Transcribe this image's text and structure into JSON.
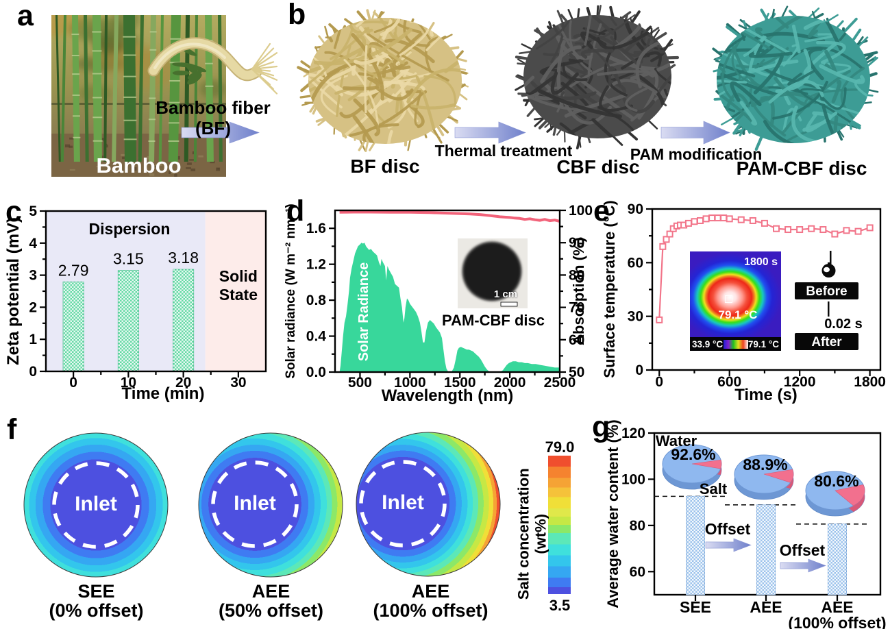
{
  "panels": {
    "a": {
      "label": "a",
      "photo_caption": "Bamboo",
      "fiber_label": "Bamboo fiber (BF)"
    },
    "b": {
      "label": "b",
      "arrow1": "Thermal treatment",
      "arrow2": "PAM modification",
      "discs": [
        {
          "name": "BF disc",
          "color": "#d6c184"
        },
        {
          "name": "CBF disc",
          "color": "#4b4b4b"
        },
        {
          "name": "PAM-CBF disc",
          "color": "#3d9c95"
        }
      ]
    },
    "c": {
      "label": "c",
      "chart_data": {
        "type": "bar",
        "xlabel": "Time (min)",
        "ylabel": "Zeta potential (mV)",
        "xlim": [
          -5,
          35
        ],
        "ylim": [
          0,
          5
        ],
        "yticks": [
          0,
          1,
          2,
          3,
          4,
          5
        ],
        "xticks": [
          0,
          10,
          20,
          30
        ],
        "categories": [
          0,
          10,
          20
        ],
        "values": [
          2.79,
          3.15,
          3.18
        ],
        "value_labels": [
          "2.79",
          "3.15",
          "3.18"
        ],
        "bar_color": "#66d9a6",
        "regions": [
          {
            "label": "Dispersion",
            "x_range": [
              -5,
              24
            ],
            "color": "#e9e9f7"
          },
          {
            "label_line1": "Solid",
            "label_line2": "State",
            "x_range": [
              24,
              35
            ],
            "color": "#fdecea"
          }
        ]
      }
    },
    "d": {
      "label": "d",
      "chart_data": {
        "type": "area+line",
        "xlabel": "Wavelength (nm)",
        "ylabel_left": "Solar radiance (W m⁻² nm⁻¹)",
        "ylabel_right": "Absorption (%)",
        "xlim": [
          250,
          2500
        ],
        "xticks": [
          500,
          1000,
          1500,
          2000,
          2500
        ],
        "ylim_left": [
          0,
          1.8
        ],
        "yticks_left": [
          "0.0",
          "0.4",
          "0.8",
          "1.2",
          "1.6"
        ],
        "ylim_right": [
          50,
          100
        ],
        "yticks_right": [
          50,
          60,
          70,
          80,
          90,
          100
        ],
        "area_series": "Solar Radiance",
        "area_color": "#38d79b",
        "line_color": "#f2637a",
        "solar": [
          [
            295,
            0
          ],
          [
            305,
            0.07
          ],
          [
            315,
            0.2
          ],
          [
            330,
            0.4
          ],
          [
            345,
            0.55
          ],
          [
            360,
            0.62
          ],
          [
            375,
            0.75
          ],
          [
            390,
            0.9
          ],
          [
            400,
            1.05
          ],
          [
            415,
            1.15
          ],
          [
            430,
            1.22
          ],
          [
            450,
            1.32
          ],
          [
            465,
            1.36
          ],
          [
            480,
            1.4
          ],
          [
            500,
            1.42
          ],
          [
            515,
            1.44
          ],
          [
            530,
            1.43
          ],
          [
            545,
            1.44
          ],
          [
            560,
            1.4
          ],
          [
            575,
            1.38
          ],
          [
            590,
            1.36
          ],
          [
            610,
            1.37
          ],
          [
            630,
            1.34
          ],
          [
            650,
            1.32
          ],
          [
            670,
            1.3
          ],
          [
            690,
            1.22
          ],
          [
            705,
            1.18
          ],
          [
            715,
            1.26
          ],
          [
            730,
            1.22
          ],
          [
            750,
            1.18
          ],
          [
            762,
            1.02
          ],
          [
            775,
            1.18
          ],
          [
            790,
            1.14
          ],
          [
            810,
            1.1
          ],
          [
            830,
            1.06
          ],
          [
            850,
            0.98
          ],
          [
            870,
            0.96
          ],
          [
            890,
            0.94
          ],
          [
            905,
            0.82
          ],
          [
            920,
            0.72
          ],
          [
            935,
            0.55
          ],
          [
            945,
            0.6
          ],
          [
            955,
            0.72
          ],
          [
            970,
            0.82
          ],
          [
            985,
            0.8
          ],
          [
            1000,
            0.76
          ],
          [
            1020,
            0.73
          ],
          [
            1040,
            0.7
          ],
          [
            1060,
            0.67
          ],
          [
            1080,
            0.62
          ],
          [
            1100,
            0.55
          ],
          [
            1115,
            0.45
          ],
          [
            1130,
            0.33
          ],
          [
            1145,
            0.33
          ],
          [
            1160,
            0.45
          ],
          [
            1180,
            0.55
          ],
          [
            1200,
            0.58
          ],
          [
            1220,
            0.56
          ],
          [
            1240,
            0.54
          ],
          [
            1260,
            0.5
          ],
          [
            1280,
            0.47
          ],
          [
            1300,
            0.44
          ],
          [
            1320,
            0.38
          ],
          [
            1335,
            0.25
          ],
          [
            1350,
            0.12
          ],
          [
            1365,
            0.04
          ],
          [
            1380,
            0.01
          ],
          [
            1400,
            0
          ],
          [
            1420,
            0.01
          ],
          [
            1440,
            0.05
          ],
          [
            1460,
            0.15
          ],
          [
            1475,
            0.24
          ],
          [
            1490,
            0.27
          ],
          [
            1510,
            0.28
          ],
          [
            1530,
            0.27
          ],
          [
            1550,
            0.26
          ],
          [
            1570,
            0.25
          ],
          [
            1590,
            0.25
          ],
          [
            1610,
            0.24
          ],
          [
            1630,
            0.23
          ],
          [
            1650,
            0.21
          ],
          [
            1670,
            0.19
          ],
          [
            1690,
            0.17
          ],
          [
            1710,
            0.14
          ],
          [
            1730,
            0.1
          ],
          [
            1750,
            0.06
          ],
          [
            1770,
            0.03
          ],
          [
            1790,
            0.01
          ],
          [
            1810,
            0
          ],
          [
            1850,
            0
          ],
          [
            1900,
            0
          ],
          [
            1930,
            0.02
          ],
          [
            1950,
            0.05
          ],
          [
            1970,
            0.08
          ],
          [
            1990,
            0.1
          ],
          [
            2010,
            0.11
          ],
          [
            2030,
            0.12
          ],
          [
            2060,
            0.12
          ],
          [
            2090,
            0.11
          ],
          [
            2120,
            0.11
          ],
          [
            2150,
            0.1
          ],
          [
            2180,
            0.1
          ],
          [
            2220,
            0.09
          ],
          [
            2260,
            0.09
          ],
          [
            2300,
            0.08
          ],
          [
            2350,
            0.07
          ],
          [
            2400,
            0.06
          ],
          [
            2450,
            0.05
          ],
          [
            2500,
            0.05
          ]
        ],
        "absorption": [
          [
            295,
            99.4
          ],
          [
            500,
            99.5
          ],
          [
            800,
            99.4
          ],
          [
            1000,
            99.4
          ],
          [
            1200,
            99.3
          ],
          [
            1400,
            99.1
          ],
          [
            1500,
            99.0
          ],
          [
            1600,
            98.9
          ],
          [
            1700,
            98.7
          ],
          [
            1800,
            98.4
          ],
          [
            1850,
            98.2
          ],
          [
            1900,
            98.0
          ],
          [
            1950,
            97.9
          ],
          [
            2000,
            97.8
          ],
          [
            2050,
            97.6
          ],
          [
            2100,
            97.5
          ],
          [
            2150,
            97.2
          ],
          [
            2200,
            97.4
          ],
          [
            2250,
            97.1
          ],
          [
            2300,
            96.9
          ],
          [
            2350,
            97.2
          ],
          [
            2400,
            96.8
          ],
          [
            2450,
            97.0
          ],
          [
            2500,
            96.6
          ]
        ]
      },
      "inset": {
        "scale_label": "1 cm",
        "caption": "PAM-CBF disc"
      }
    },
    "e": {
      "label": "e",
      "chart_data": {
        "type": "line",
        "xlabel": "Time (s)",
        "ylabel": "Surface temperature (°C)",
        "xlim": [
          -60,
          1890
        ],
        "xticks": [
          0,
          600,
          1200,
          1800
        ],
        "ylim": [
          0,
          90
        ],
        "yticks": [
          0,
          30,
          60,
          90
        ],
        "line_color": "#f2758a",
        "x": [
          0,
          30,
          60,
          90,
          120,
          150,
          180,
          210,
          250,
          300,
          350,
          400,
          450,
          500,
          550,
          600,
          700,
          800,
          900,
          1000,
          1100,
          1200,
          1300,
          1400,
          1500,
          1600,
          1700,
          1800
        ],
        "y": [
          28,
          69,
          73,
          76,
          79,
          80.5,
          81,
          81,
          82,
          83,
          83.5,
          84.5,
          85,
          85,
          85,
          84.5,
          84,
          83.5,
          82,
          79,
          78.5,
          78.5,
          79,
          78.5,
          76,
          78,
          77.5,
          79.5
        ]
      },
      "thermal_inset": {
        "time_label": "1800 s",
        "spot_label": "79.1 °C",
        "scale_min": "33.9 °C",
        "scale_max": "79.1 °C"
      },
      "droplet_inset": {
        "before_label": "Before",
        "after_label": "After",
        "time_label": "0.02 s"
      }
    },
    "f": {
      "label": "f",
      "circles": [
        {
          "title": "SEE",
          "subtitle": "(0% offset)",
          "inlet_label": "Inlet",
          "offset_percent": 0
        },
        {
          "title": "AEE",
          "subtitle": "(50% offset)",
          "inlet_label": "Inlet",
          "offset_percent": 50
        },
        {
          "title": "AEE",
          "subtitle": "(100% offset)",
          "inlet_label": "Inlet",
          "offset_percent": 100
        }
      ],
      "colorbar": {
        "label": "Salt concentration (wt%)",
        "max_label": "79.0",
        "min_label": "3.5",
        "max": 79.0,
        "min": 3.5
      }
    },
    "g": {
      "label": "g",
      "chart_data": {
        "type": "bar",
        "ylabel": "Average water content (%)",
        "ylim": [
          50,
          120
        ],
        "yticks": [
          60,
          80,
          100,
          120
        ],
        "categories": [
          "SEE",
          "AEE",
          "AEE (100% offset)"
        ],
        "category_lines": [
          [
            "SEE"
          ],
          [
            "AEE"
          ],
          [
            "AEE",
            "(100% offset)"
          ]
        ],
        "values": [
          92.6,
          88.9,
          80.6
        ],
        "bar_color": "#9cc2ec",
        "water_label": "Water",
        "salt_label": "Salt",
        "offset_arrow_label": "Offset",
        "pie_water_color": "#8fb8ef",
        "pie_salt_color": "#f2708e",
        "pies": [
          {
            "label": "92.6%",
            "water_pct": 92.6
          },
          {
            "label": "88.9%",
            "water_pct": 88.9
          },
          {
            "label": "80.6%",
            "water_pct": 80.6
          }
        ]
      }
    }
  }
}
